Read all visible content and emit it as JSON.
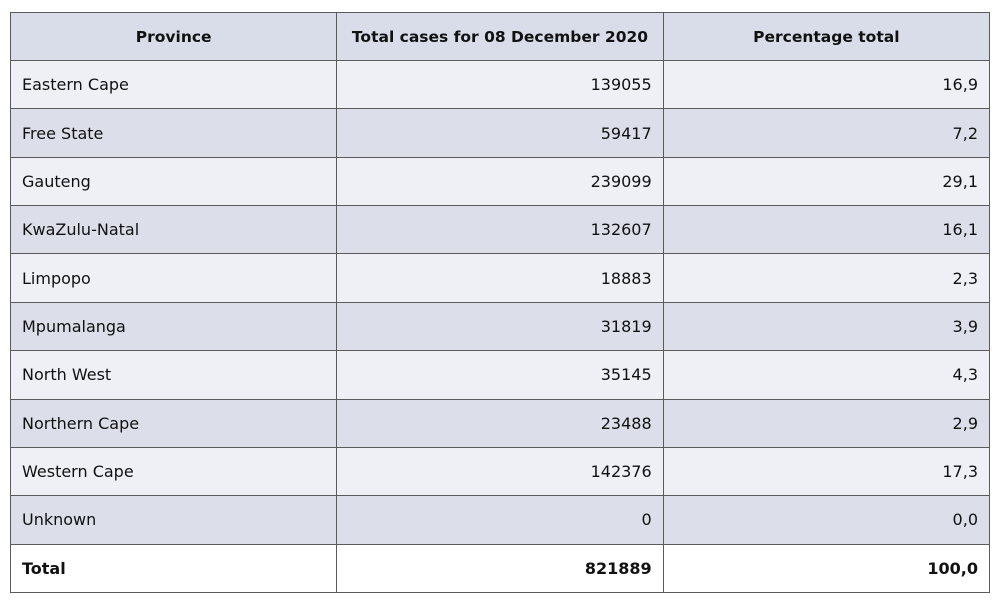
{
  "table": {
    "header": [
      "Province",
      "Total cases for 08 December 2020",
      "Percentage total"
    ],
    "rows": [
      [
        "Eastern Cape",
        "139055",
        "16,9"
      ],
      [
        "Free State",
        "59417",
        "7,2"
      ],
      [
        "Gauteng",
        "239099",
        "29,1"
      ],
      [
        "KwaZulu-Natal",
        "132607",
        "16,1"
      ],
      [
        "Limpopo",
        "18883",
        "2,3"
      ],
      [
        "Mpumalanga",
        "31819",
        "3,9"
      ],
      [
        "North West",
        "35145",
        "4,3"
      ],
      [
        "Northern Cape",
        "23488",
        "2,9"
      ],
      [
        "Western Cape",
        "142376",
        "17,3"
      ],
      [
        "Unknown",
        "0",
        "0,0"
      ]
    ],
    "total": [
      "Total",
      "821889",
      "100,0"
    ]
  }
}
